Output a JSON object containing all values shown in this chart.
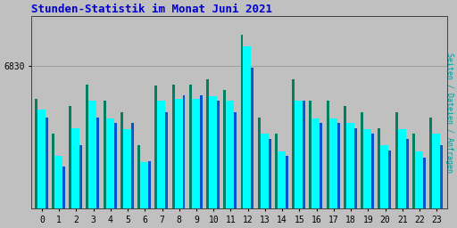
{
  "title": "Stunden-Statistik im Monat Juni 2021",
  "title_color": "#0000cc",
  "ylabel_right": "Seiten / Dateien / Anfragen",
  "ylabel_right_color": "#009999",
  "background_color": "#c0c0c0",
  "hours": [
    0,
    1,
    2,
    3,
    4,
    5,
    6,
    7,
    8,
    9,
    10,
    11,
    12,
    13,
    14,
    15,
    16,
    17,
    18,
    19,
    20,
    21,
    22,
    23
  ],
  "cyan_values": [
    6790,
    6748,
    6773,
    6798,
    6782,
    6772,
    6742,
    6798,
    6800,
    6800,
    6802,
    6798,
    6848,
    6768,
    6752,
    6798,
    6782,
    6782,
    6778,
    6772,
    6758,
    6772,
    6752,
    6768
  ],
  "teal_values": [
    6800,
    6768,
    6793,
    6813,
    6798,
    6788,
    6758,
    6812,
    6813,
    6813,
    6818,
    6808,
    6858,
    6783,
    6768,
    6818,
    6798,
    6798,
    6793,
    6788,
    6773,
    6788,
    6768,
    6783
  ],
  "blue_values": [
    6783,
    6738,
    6758,
    6783,
    6778,
    6778,
    6743,
    6788,
    6803,
    6803,
    6798,
    6788,
    6828,
    6763,
    6748,
    6798,
    6778,
    6778,
    6773,
    6768,
    6753,
    6763,
    6746,
    6758
  ],
  "ylim_min": 6700,
  "ylim_max": 6875,
  "ytick_val": 6830,
  "cyan_color": "#00ffff",
  "teal_color": "#008060",
  "blue_color": "#0055cc",
  "grid_color": "#999999",
  "border_color": "#444444",
  "font_family": "monospace",
  "title_fontsize": 9,
  "tick_fontsize": 7,
  "ylabel_fontsize": 6
}
